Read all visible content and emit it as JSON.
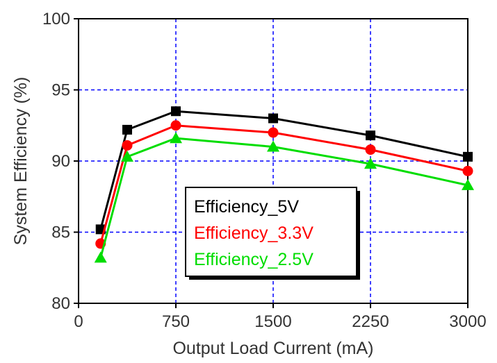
{
  "chart_data": {
    "type": "line",
    "title": "",
    "xlabel": "Output Load Current (mA)",
    "ylabel": "System Efficiency (%)",
    "xlim": [
      0,
      3000
    ],
    "ylim": [
      80,
      100
    ],
    "x_ticks": [
      0,
      750,
      1500,
      2250,
      3000
    ],
    "x_tick_labels": [
      "0",
      "750",
      "1500",
      "2250",
      "3000"
    ],
    "y_ticks": [
      80,
      85,
      90,
      95,
      100
    ],
    "y_tick_labels": [
      "80",
      "85",
      "90",
      "95",
      "100"
    ],
    "grid": true,
    "grid_style": "dashed",
    "grid_color": "#0000ff",
    "legend_position": "bottom-center",
    "series": [
      {
        "name": "Efficiency_5V",
        "color": "#000000",
        "marker": "square",
        "x": [
          170,
          375,
          750,
          1500,
          2250,
          3000
        ],
        "y": [
          85.2,
          92.2,
          93.5,
          93.0,
          91.8,
          90.3
        ]
      },
      {
        "name": "Efficiency_3.3V",
        "color": "#ff0000",
        "marker": "circle",
        "x": [
          170,
          375,
          750,
          1500,
          2250,
          3000
        ],
        "y": [
          84.2,
          91.1,
          92.5,
          92.0,
          90.8,
          89.3
        ]
      },
      {
        "name": "Efficiency_2.5V",
        "color": "#00dd00",
        "marker": "triangle",
        "x": [
          170,
          375,
          750,
          1500,
          2250,
          3000
        ],
        "y": [
          83.2,
          90.3,
          91.6,
          91.0,
          89.8,
          88.3
        ]
      }
    ]
  }
}
